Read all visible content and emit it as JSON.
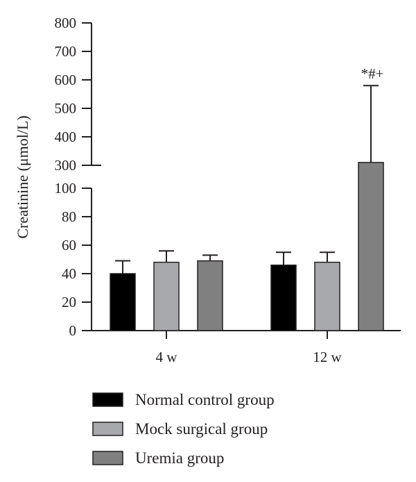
{
  "chart_data": {
    "type": "bar",
    "ylabel": "Creatinine (μmol/L)",
    "categories": [
      "4 w",
      "12 w"
    ],
    "y_axis": {
      "broken": true,
      "lower_ticks": [
        0,
        20,
        40,
        60,
        80,
        100
      ],
      "upper_ticks": [
        300,
        400,
        500,
        600,
        700,
        800
      ],
      "lower_range": [
        0,
        100
      ],
      "upper_range": [
        300,
        800
      ]
    },
    "series": [
      {
        "name": "Normal control group",
        "color": "#000000",
        "values": [
          40,
          46
        ],
        "errors": [
          9,
          9
        ]
      },
      {
        "name": "Mock surgical group",
        "color": "#a7a9ac",
        "values": [
          48,
          48
        ],
        "errors": [
          8,
          7
        ]
      },
      {
        "name": "Uremia group",
        "color": "#808080",
        "values": [
          49,
          310
        ],
        "errors": [
          4,
          270
        ]
      }
    ],
    "annotations": [
      {
        "category": "12 w",
        "series": "Uremia group",
        "text": "*#+"
      }
    ],
    "legend_position": "bottom",
    "grid": false
  }
}
